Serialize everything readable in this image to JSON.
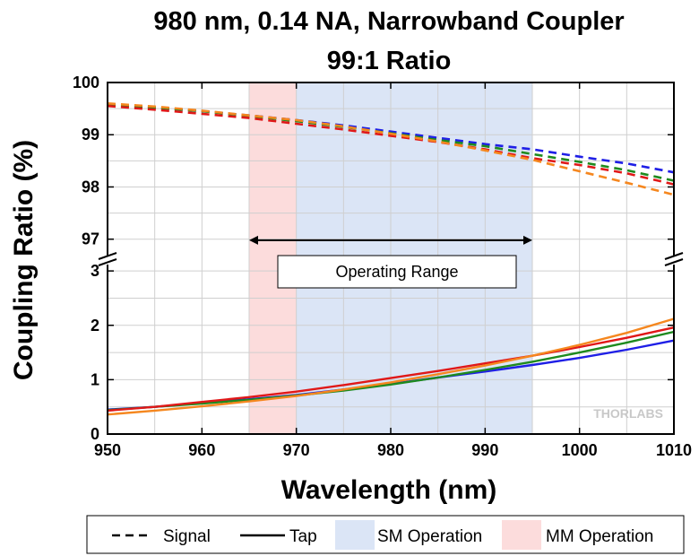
{
  "chart_data": {
    "type": "line",
    "title_line1": "980 nm, 0.14 NA, Narrowband Coupler",
    "title_line2": "99:1 Ratio",
    "xlabel": "Wavelength (nm)",
    "ylabel": "Coupling Ratio (%)",
    "xlim": [
      950,
      1010
    ],
    "x_ticks": [
      "950",
      "960",
      "970",
      "980",
      "990",
      "1000",
      "1010"
    ],
    "y_upper_range": [
      96.6,
      100
    ],
    "y_lower_range": [
      0,
      3.2
    ],
    "y_upper_ticks": [
      "97",
      "98",
      "99",
      "100"
    ],
    "y_lower_ticks": [
      "0",
      "1",
      "2",
      "3"
    ],
    "grid": true,
    "axis_break": true,
    "bands": [
      {
        "name": "MM Operation",
        "range": [
          965,
          970
        ],
        "color": "#fcdcdc"
      },
      {
        "name": "SM Operation",
        "range": [
          970,
          995
        ],
        "color": "#dbe5f6"
      }
    ],
    "annotation": {
      "text": "Operating Range",
      "range": [
        965,
        995
      ],
      "arrow_y": 96.98
    },
    "watermark": "THORLABS",
    "legend": {
      "position": "bottom",
      "items": [
        {
          "label": "Signal",
          "style": "dashed"
        },
        {
          "label": "Tap",
          "style": "solid"
        },
        {
          "label": "SM Operation",
          "style": "swatch",
          "color": "#dbe5f6"
        },
        {
          "label": "MM Operation",
          "style": "swatch",
          "color": "#fcdcdc"
        }
      ]
    },
    "x": [
      950,
      955,
      960,
      965,
      970,
      975,
      980,
      985,
      990,
      995,
      1000,
      1005,
      1010
    ],
    "signal_series": [
      {
        "color": "#1f1fe6",
        "values": [
          99.56,
          99.52,
          99.45,
          99.37,
          99.28,
          99.18,
          99.06,
          98.94,
          98.82,
          98.72,
          98.58,
          98.45,
          98.28
        ]
      },
      {
        "color": "#1e8a1e",
        "values": [
          99.57,
          99.52,
          99.45,
          99.36,
          99.26,
          99.15,
          99.03,
          98.9,
          98.78,
          98.63,
          98.48,
          98.32,
          98.12
        ]
      },
      {
        "color": "#e01818",
        "values": [
          99.55,
          99.48,
          99.4,
          99.32,
          99.21,
          99.1,
          98.98,
          98.86,
          98.72,
          98.55,
          98.42,
          98.26,
          98.05
        ]
      },
      {
        "color": "#f5871f",
        "values": [
          99.6,
          99.54,
          99.46,
          99.37,
          99.28,
          99.16,
          99.02,
          98.87,
          98.7,
          98.52,
          98.3,
          98.08,
          97.85
        ]
      }
    ],
    "tap_series": [
      {
        "color": "#1f1fe6",
        "values": [
          0.45,
          0.5,
          0.57,
          0.64,
          0.72,
          0.82,
          0.92,
          1.04,
          1.15,
          1.27,
          1.4,
          1.55,
          1.72
        ]
      },
      {
        "color": "#1e8a1e",
        "values": [
          0.44,
          0.5,
          0.56,
          0.63,
          0.71,
          0.8,
          0.91,
          1.04,
          1.18,
          1.33,
          1.5,
          1.68,
          1.88
        ]
      },
      {
        "color": "#e01818",
        "values": [
          0.43,
          0.5,
          0.59,
          0.68,
          0.78,
          0.9,
          1.03,
          1.16,
          1.3,
          1.44,
          1.6,
          1.77,
          1.96
        ]
      },
      {
        "color": "#f5871f",
        "values": [
          0.36,
          0.43,
          0.51,
          0.6,
          0.7,
          0.82,
          0.95,
          1.1,
          1.26,
          1.44,
          1.64,
          1.86,
          2.12
        ]
      }
    ]
  }
}
